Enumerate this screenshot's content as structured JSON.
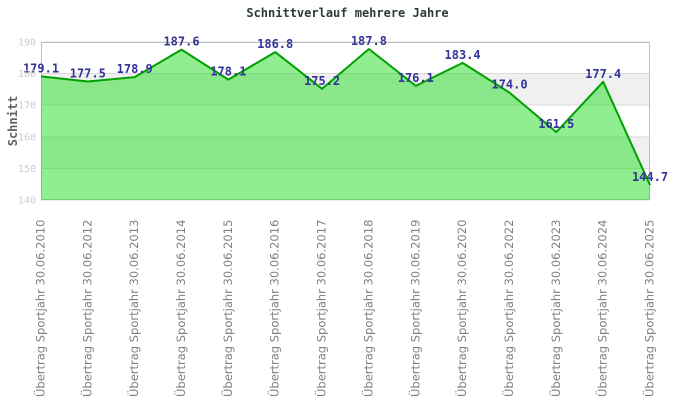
{
  "page": {
    "title": "Schnittverlauf mehrere Jahre"
  },
  "chart_data": {
    "type": "area",
    "title": "Schnittverlauf mehrere Jahre",
    "ylabel": "Schnitt",
    "xlabel": "",
    "categories": [
      "Übertrag Sportjahr 30.06.2010",
      "Übertrag Sportjahr 30.06.2012",
      "Übertrag Sportjahr 30.06.2013",
      "Übertrag Sportjahr 30.06.2014",
      "Übertrag Sportjahr 30.06.2015",
      "Übertrag Sportjahr 30.06.2016",
      "Übertrag Sportjahr 30.06.2017",
      "Übertrag Sportjahr 30.06.2018",
      "Übertrag Sportjahr 30.06.2019",
      "Übertrag Sportjahr 30.06.2020",
      "Übertrag Sportjahr 30.06.2022",
      "Übertrag Sportjahr 30.06.2023",
      "Übertrag Sportjahr 30.06.2024",
      "Übertrag Sportjahr 30.06.2025"
    ],
    "values": [
      179.1,
      177.5,
      178.9,
      187.6,
      178.1,
      186.8,
      175.2,
      187.8,
      176.1,
      183.4,
      174.0,
      161.5,
      177.4,
      144.7
    ],
    "value_labels": [
      "179.1",
      "177.5",
      "178.9",
      "187.6",
      "178.1",
      "186.8",
      "175.2",
      "187.8",
      "176.1",
      "183.4",
      "174.0",
      "161.5",
      "177.4",
      "144.7"
    ],
    "ylim": [
      140,
      190
    ],
    "yticks": [
      140,
      150,
      160,
      170,
      180,
      190
    ],
    "ytick_labels": [
      "140",
      "150",
      "160",
      "170",
      "180",
      "190"
    ],
    "grid": true,
    "legend": "none",
    "colors": {
      "background": "#ffffff",
      "band_white": "#ffffff",
      "band_alt": "#f0f0f0",
      "gridline": "#d9d9d9",
      "border": "#c0c0c0",
      "area_fill": "rgba(33,221,33,0.5)",
      "line": "#00a000",
      "value_label": "#333399",
      "tick_label": "#cccccc",
      "axis_label": "#808080",
      "ylabel_color": "#606060",
      "title": "#2b3a3a"
    }
  }
}
